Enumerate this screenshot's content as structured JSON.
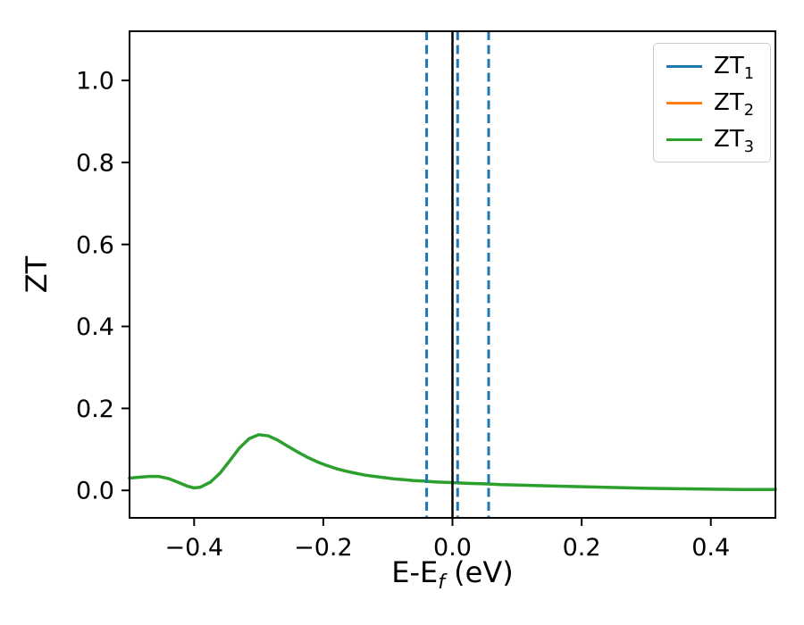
{
  "figure": {
    "background": "#ffffff"
  },
  "chart_data": {
    "type": "line",
    "title": "",
    "xlabel": {
      "main": "E-E",
      "sub": "f",
      "unit": " (eV)"
    },
    "ylabel": "ZT",
    "xlim": [
      -0.5,
      0.5
    ],
    "ylim": [
      -0.067,
      1.12
    ],
    "grid": false,
    "xticks": [
      {
        "pos": -0.4,
        "label": "−0.4"
      },
      {
        "pos": -0.2,
        "label": "−0.2"
      },
      {
        "pos": 0.0,
        "label": "0.0"
      },
      {
        "pos": 0.2,
        "label": "0.2"
      },
      {
        "pos": 0.4,
        "label": "0.4"
      }
    ],
    "yticks": [
      {
        "pos": 0.0,
        "label": "0.0"
      },
      {
        "pos": 0.2,
        "label": "0.2"
      },
      {
        "pos": 0.4,
        "label": "0.4"
      },
      {
        "pos": 0.6,
        "label": "0.6"
      },
      {
        "pos": 0.8,
        "label": "0.8"
      },
      {
        "pos": 1.0,
        "label": "1.0"
      }
    ],
    "legend": {
      "position": "upper right",
      "entries": [
        {
          "base": "ZT",
          "sub": "1",
          "color": "#1f77b4"
        },
        {
          "base": "ZT",
          "sub": "2",
          "color": "#ff7f0e"
        },
        {
          "base": "ZT",
          "sub": "3",
          "color": "#2ca02c"
        }
      ]
    },
    "vlines": [
      {
        "x": 0.0,
        "color": "#000000",
        "style": "solid"
      },
      {
        "x": -0.04,
        "color": "#1f77b4",
        "style": "dashed"
      },
      {
        "x": 0.008,
        "color": "#1f77b4",
        "style": "dashed"
      },
      {
        "x": 0.056,
        "color": "#1f77b4",
        "style": "dashed"
      }
    ],
    "series": [
      {
        "name": "ZT1",
        "color": "#1f77b4",
        "curve_visible": false,
        "points": []
      },
      {
        "name": "ZT2",
        "color": "#ff7f0e",
        "curve_visible": false,
        "points": []
      },
      {
        "name": "ZT3",
        "color": "#2ca02c",
        "curve_visible": true,
        "points": [
          [
            -0.5,
            0.03
          ],
          [
            -0.485,
            0.032
          ],
          [
            -0.47,
            0.034
          ],
          [
            -0.455,
            0.034
          ],
          [
            -0.44,
            0.029
          ],
          [
            -0.425,
            0.02
          ],
          [
            -0.41,
            0.01
          ],
          [
            -0.4,
            0.006
          ],
          [
            -0.39,
            0.008
          ],
          [
            -0.375,
            0.02
          ],
          [
            -0.36,
            0.042
          ],
          [
            -0.345,
            0.072
          ],
          [
            -0.33,
            0.103
          ],
          [
            -0.315,
            0.126
          ],
          [
            -0.3,
            0.136
          ],
          [
            -0.285,
            0.133
          ],
          [
            -0.27,
            0.122
          ],
          [
            -0.255,
            0.108
          ],
          [
            -0.24,
            0.094
          ],
          [
            -0.225,
            0.081
          ],
          [
            -0.21,
            0.07
          ],
          [
            -0.195,
            0.061
          ],
          [
            -0.18,
            0.053
          ],
          [
            -0.165,
            0.047
          ],
          [
            -0.15,
            0.042
          ],
          [
            -0.135,
            0.037
          ],
          [
            -0.12,
            0.034
          ],
          [
            -0.105,
            0.031
          ],
          [
            -0.09,
            0.028
          ],
          [
            -0.075,
            0.026
          ],
          [
            -0.06,
            0.024
          ],
          [
            -0.045,
            0.023
          ],
          [
            -0.03,
            0.021
          ],
          [
            -0.015,
            0.02
          ],
          [
            0.0,
            0.019
          ],
          [
            0.025,
            0.017
          ],
          [
            0.05,
            0.016
          ],
          [
            0.075,
            0.014
          ],
          [
            0.1,
            0.013
          ],
          [
            0.15,
            0.011
          ],
          [
            0.2,
            0.009
          ],
          [
            0.25,
            0.007
          ],
          [
            0.3,
            0.005
          ],
          [
            0.35,
            0.004
          ],
          [
            0.4,
            0.003
          ],
          [
            0.45,
            0.002
          ],
          [
            0.5,
            0.002
          ]
        ]
      }
    ]
  }
}
